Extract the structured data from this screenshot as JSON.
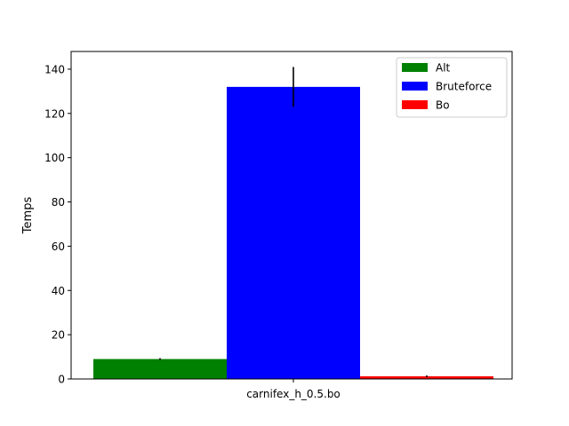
{
  "chart_data": {
    "type": "bar",
    "title": "",
    "xlabel": "",
    "ylabel": "Temps",
    "categories": [
      "carnifex_h_0.5.bo"
    ],
    "ylim": [
      0,
      148
    ],
    "yticks": [
      0,
      20,
      40,
      60,
      80,
      100,
      120,
      140
    ],
    "grid": false,
    "legend_position": "top-right",
    "series": [
      {
        "name": "Alt",
        "values": [
          9.0
        ],
        "error": [
          0.4
        ],
        "color": "#008000"
      },
      {
        "name": "Bruteforce",
        "values": [
          132.0
        ],
        "error": [
          9.0
        ],
        "color": "#0000ff"
      },
      {
        "name": "Bo",
        "values": [
          1.2
        ],
        "error": [
          0.4
        ],
        "color": "#ff0000"
      }
    ]
  }
}
